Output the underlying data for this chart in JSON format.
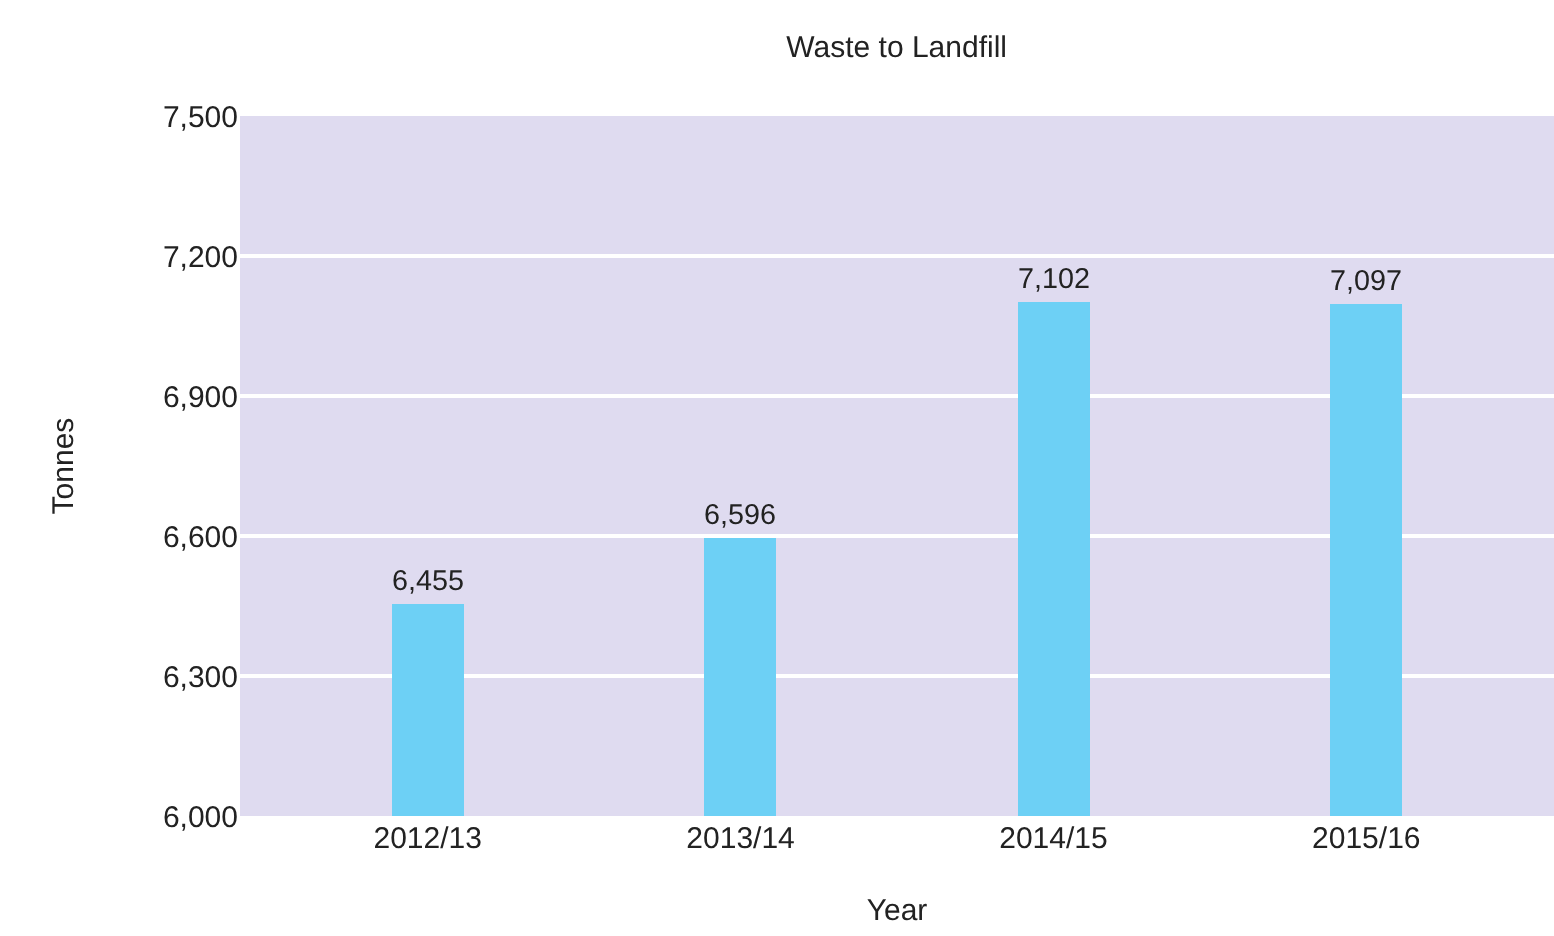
{
  "chart_data": {
    "type": "bar",
    "title": "Waste to Landfill",
    "xlabel": "Year",
    "ylabel": "Tonnes",
    "categories": [
      "2012/13",
      "2013/14",
      "2014/15",
      "2015/16"
    ],
    "values": [
      6455,
      6596,
      7102,
      7097
    ],
    "value_labels": [
      "6,455",
      "6,596",
      "7,102",
      "7,097"
    ],
    "color": "#6dd0f5",
    "ylim": [
      6000,
      7500
    ],
    "yticks": [
      {
        "value": 6000,
        "label": "6,000"
      },
      {
        "value": 6300,
        "label": "6,300"
      },
      {
        "value": 6600,
        "label": "6,600"
      },
      {
        "value": 6900,
        "label": "6,900"
      },
      {
        "value": 7200,
        "label": "7,200"
      },
      {
        "value": 7500,
        "label": "7,500"
      }
    ],
    "grid": "y"
  }
}
